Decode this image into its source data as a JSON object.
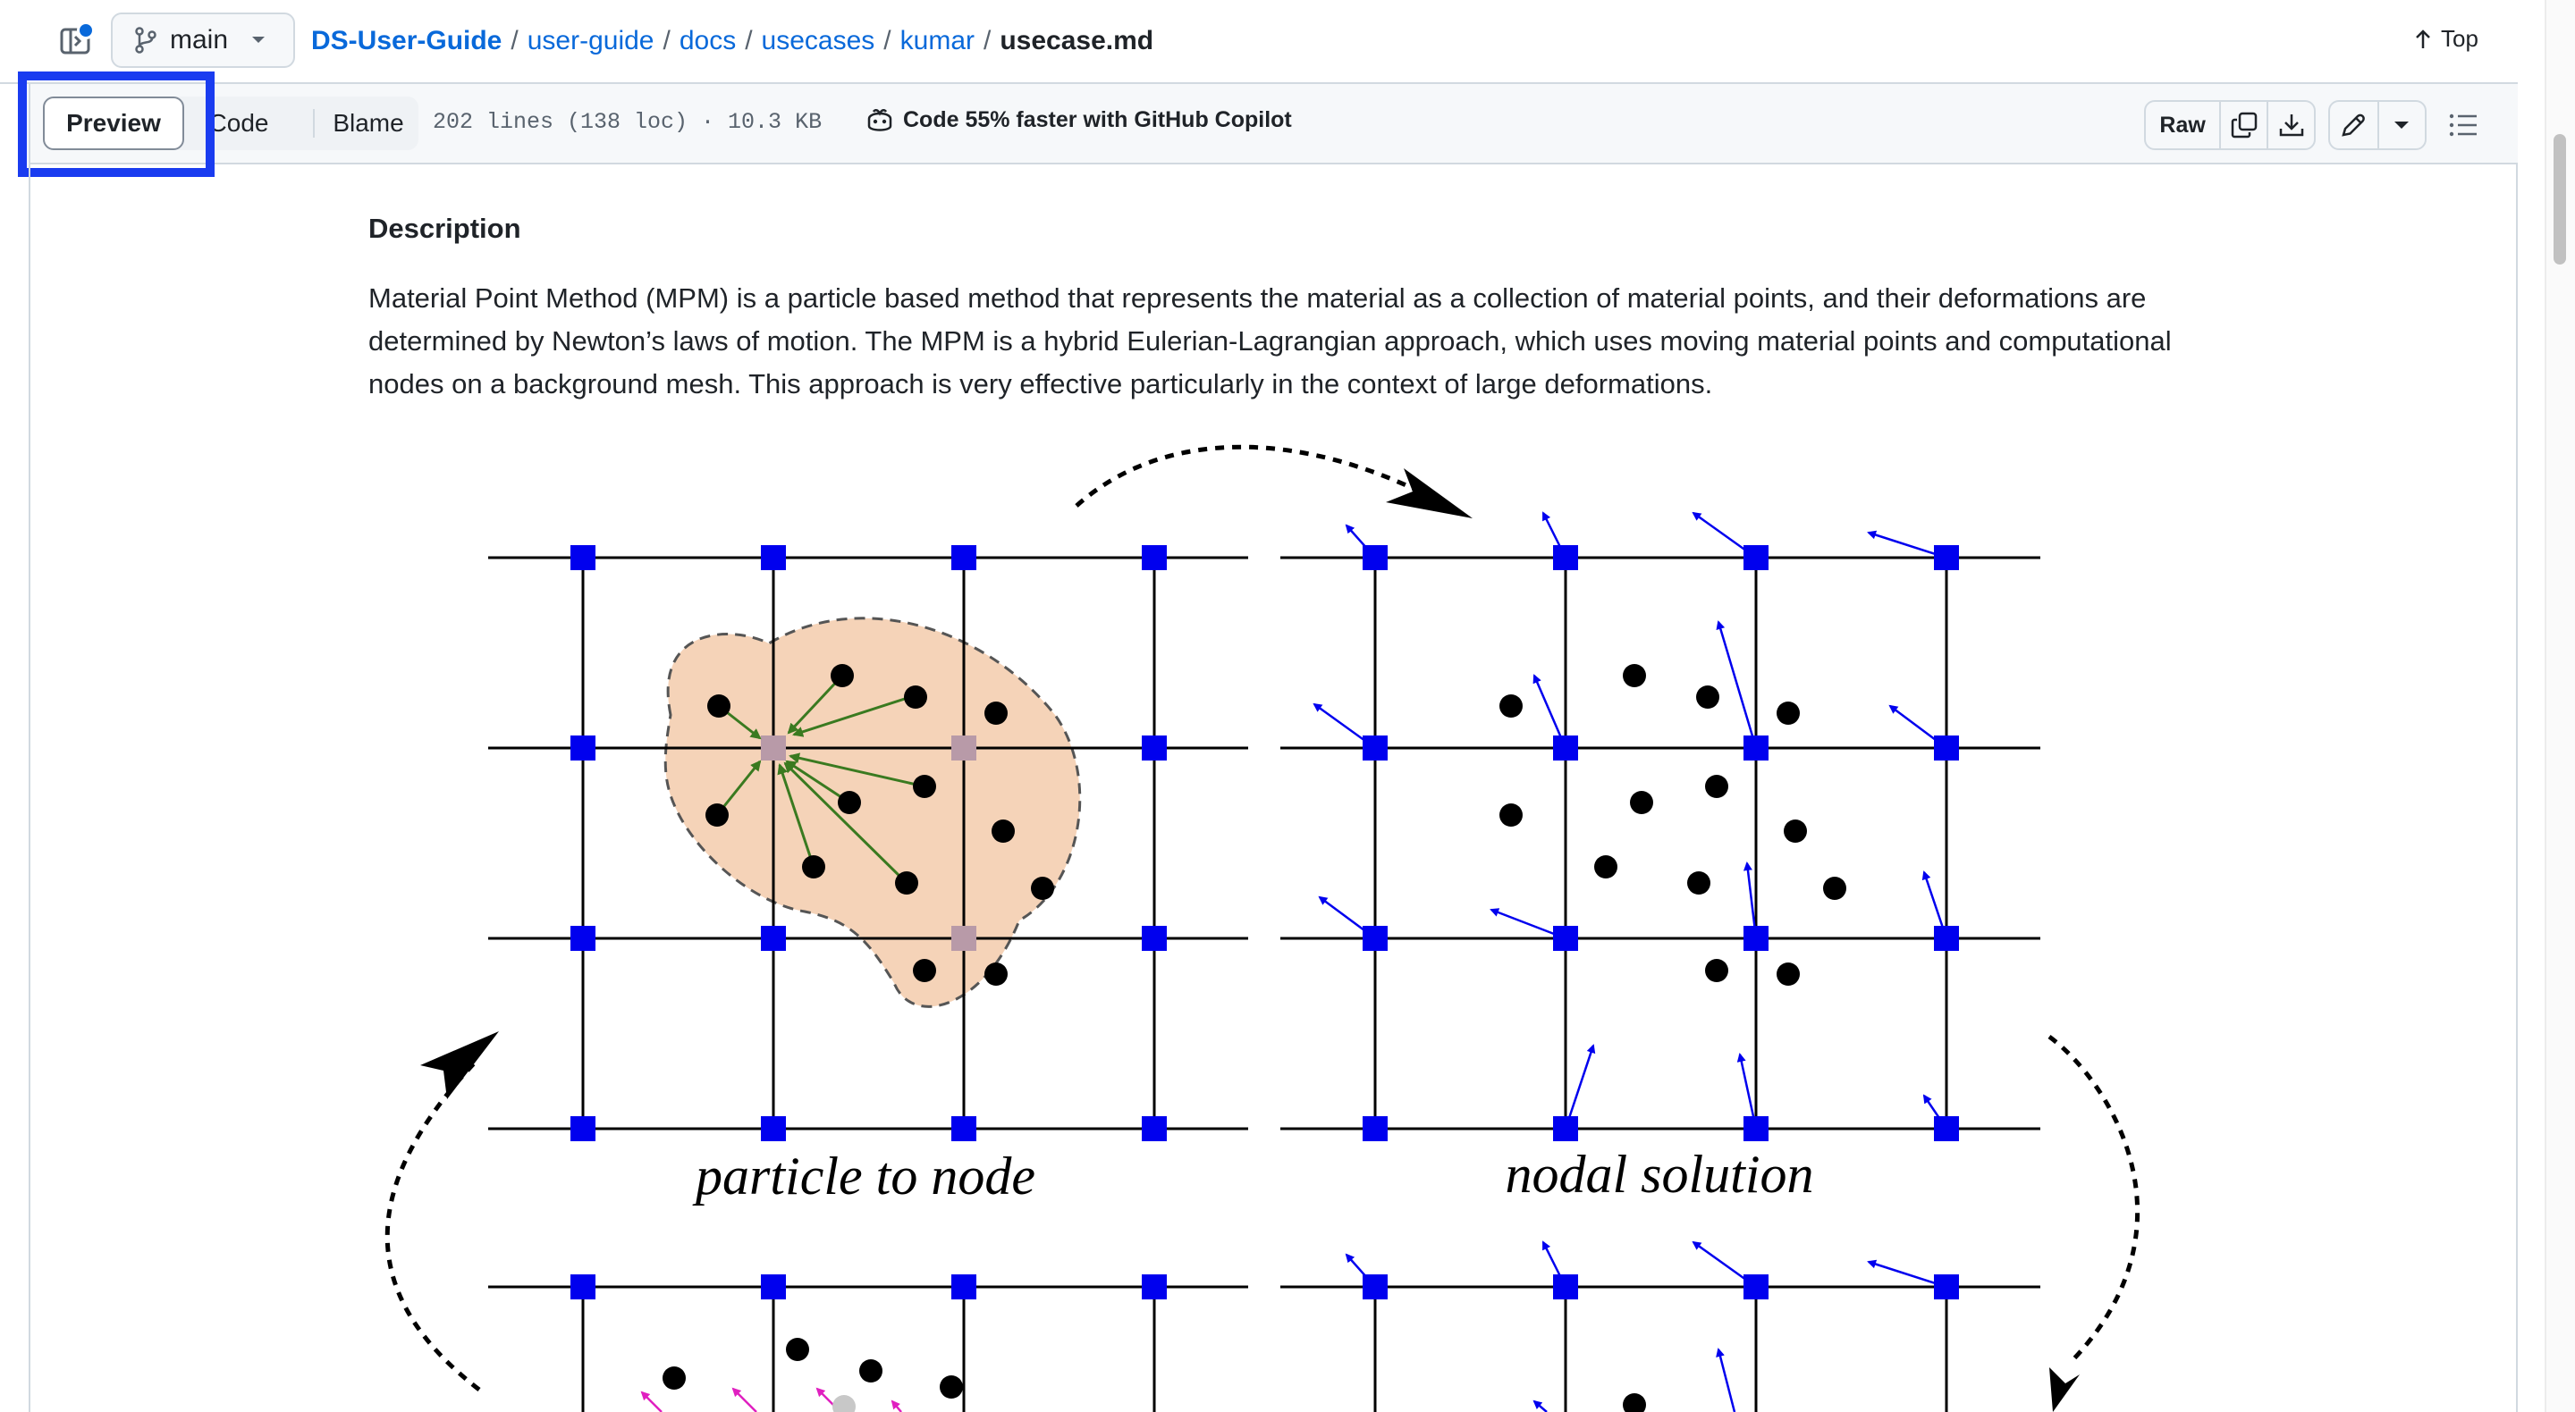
{
  "header": {
    "branch": "main",
    "breadcrumb": {
      "repo": "DS-User-Guide",
      "crumbs": [
        "user-guide",
        "docs",
        "usecases",
        "kumar"
      ],
      "separator": "/",
      "file": "usecase.md"
    },
    "top_label": "Top"
  },
  "toolbar": {
    "tabs": {
      "preview": "Preview",
      "code": "Code",
      "blame": "Blame"
    },
    "file_meta": "202 lines (138 loc) · 10.3 KB",
    "copilot": "Code 55% faster with GitHub Copilot",
    "raw_label": "Raw"
  },
  "content": {
    "heading": "Description",
    "paragraph": "Material Point Method (MPM) is a particle based method that represents the material as a collection of material points, and their deformations are determined by Newton’s laws of motion. The MPM is a hybrid Eulerian-Lagrangian approach, which uses moving material points and computational nodes on a background mesh. This approach is very effective particularly in the context of large deformations.",
    "figure": {
      "caption_left": "particle to node",
      "caption_right": "nodal solution"
    }
  },
  "colors": {
    "link": "#0969da",
    "highlight": "#1a3cf0",
    "node": "#0000ee",
    "particle_region": "#f5d3b8",
    "mapping_arrow": "#3a7a20"
  }
}
